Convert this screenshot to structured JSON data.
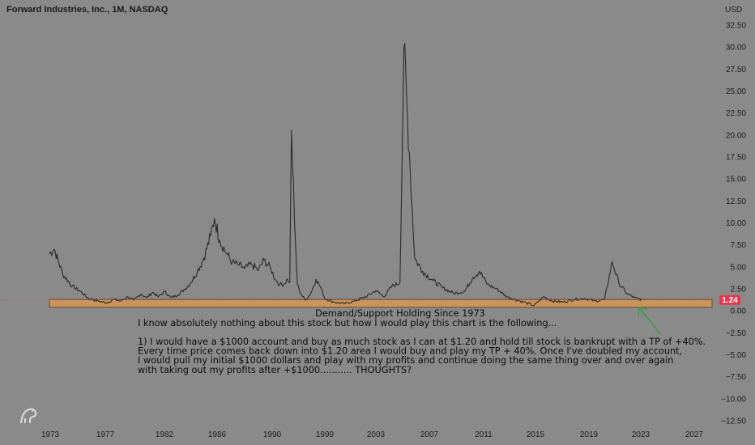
{
  "header": {
    "title": "Forward Industries, Inc., 1M, NASDAQ"
  },
  "colors": {
    "background": "#8a8a8a",
    "candle": "#2b2b2b",
    "zone_fill": "#c9955c",
    "zone_border": "#5a3b1c",
    "price_tag": "#e8364e",
    "arrow": "#3d9a4a",
    "price_line": "#c94a5a"
  },
  "chart_data": {
    "type": "line",
    "title": "Forward Industries, Inc., 1M, NASDAQ",
    "xlabel": "",
    "ylabel": "",
    "currency_label": "USD",
    "x_ticks": [
      "1973",
      "1977",
      "1982",
      "1986",
      "1990",
      "1999",
      "2003",
      "2007",
      "2011",
      "2015",
      "2019",
      "2023",
      "2027"
    ],
    "y_ticks": [
      "32.50",
      "30.00",
      "27.50",
      "25.00",
      "22.50",
      "20.00",
      "17.50",
      "15.00",
      "12.50",
      "10.00",
      "7.50",
      "5.00",
      "2.50",
      "0.00",
      "−2.50",
      "−5.00",
      "−7.50",
      "−10.00",
      "−12.50"
    ],
    "ylim": [
      -12.5,
      32.5
    ],
    "grid": false,
    "last_price": "1.24",
    "series": [
      {
        "values": [
          6.5,
          7.0,
          4.2,
          2.8,
          2.2,
          1.4,
          1.1,
          0.9,
          1.3,
          1.1,
          1.6,
          1.2,
          1.9,
          1.5,
          2.1,
          1.6,
          2.2,
          1.5,
          1.8,
          2.4,
          3.2,
          4.5,
          6.0,
          8.5,
          10.5,
          8.0,
          6.5,
          5.5,
          5.2,
          4.8,
          5.3,
          4.6,
          5.8,
          4.8,
          3.5,
          3.0,
          3.0,
          3.6,
          3.2,
          20.5,
          10.5,
          3.0,
          1.8,
          1.2,
          2.0,
          3.6,
          2.5,
          1.4,
          1.0,
          0.8,
          1.1,
          1.6,
          2.3,
          1.6,
          2.8,
          3.2,
          30.0,
          18.0,
          6.0,
          4.5,
          3.4,
          2.6,
          2.0,
          2.2,
          3.8,
          4.5,
          3.0,
          2.5,
          1.6,
          1.2,
          0.9,
          0.6,
          1.6,
          1.1,
          1.0,
          1.3,
          1.4,
          1.1,
          1.3,
          5.6,
          3.2,
          2.0,
          1.5,
          1.24
        ],
        "anchor_years": [
          1972.9,
          1973.3,
          1973.9,
          1974.6,
          1975.2,
          1975.8,
          1976.5,
          1977.1,
          1977.7,
          1978.3,
          1978.9,
          1979.4,
          1980.0,
          1980.5,
          1981.0,
          1981.5,
          1982.0,
          1982.5,
          1983.0,
          1983.5,
          1984.0,
          1984.5,
          1985.0,
          1985.5,
          1985.8,
          1986.2,
          1986.7,
          1987.1,
          1987.6,
          1988.0,
          1988.5,
          1989.0,
          1989.4,
          1989.9,
          1990.6,
          1991.3,
          1992.0,
          1992.6,
          1993.0,
          1993.3,
          1993.8,
          1994.3,
          1995.0,
          1995.7,
          1996.6,
          1997.5,
          1998.4,
          1999.0,
          1999.7,
          2000.5,
          2001.3,
          2002.2,
          2003.0,
          2003.6,
          2004.2,
          2004.8,
          2005.1,
          2005.5,
          2005.9,
          2006.5,
          2007.3,
          2008.0,
          2008.8,
          2009.6,
          2010.2,
          2010.7,
          2011.3,
          2012.0,
          2012.8,
          2013.6,
          2014.3,
          2014.9,
          2015.6,
          2016.3,
          2017.1,
          2017.9,
          2018.7,
          2019.5,
          2020.2,
          2020.8,
          2021.3,
          2021.9,
          2022.5,
          2023.1
        ]
      }
    ]
  },
  "annotations": {
    "zone_label": "Demand/Support Holding Since 1973",
    "zone_low": 0.4,
    "zone_high": 1.3,
    "note_lines": [
      "I know absolutely nothing about this stock but how I would play this chart is the following...",
      "",
      "1) I would have a $1000 account and buy as much stock as I can at $1.20 and hold till stock is bankrupt with a TP of +40%.",
      "Every time price comes back down into $1.20 area I would buy and play my TP + 40%. Once I've doubled my account,",
      "I would pull my initial $1000 dollars and play with my profits and continue doing the same thing over and over again",
      "with taking out my profits after +$1000........... THOUGHTS?"
    ]
  }
}
